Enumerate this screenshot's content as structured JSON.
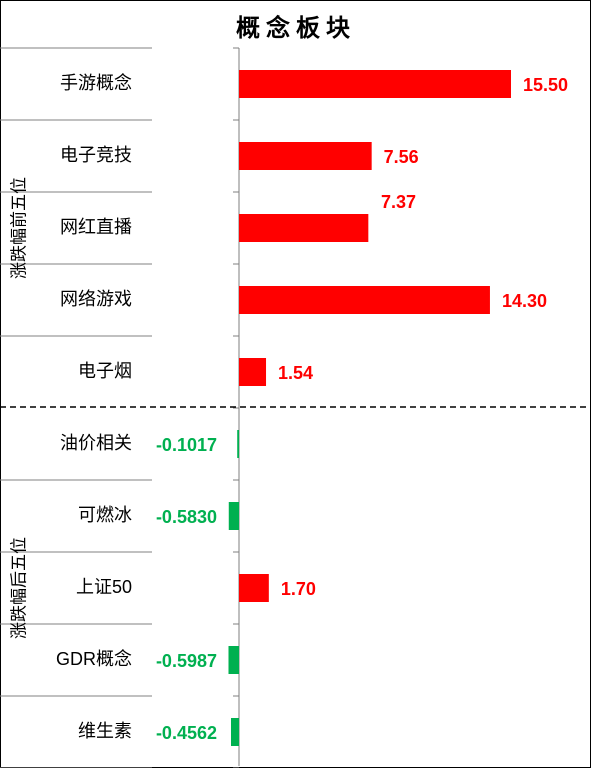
{
  "chart_data": {
    "type": "bar",
    "orientation": "horizontal",
    "title": "概念板块",
    "groups": [
      {
        "label": "涨跌幅前五位",
        "categories": [
          "手游概念",
          "电子竞技",
          "网红直播",
          "网络游戏",
          "电子烟"
        ],
        "values": [
          15.5,
          7.56,
          7.37,
          14.3,
          1.54
        ],
        "value_labels": [
          "15.50",
          "7.56",
          "7.37",
          "14.30",
          "1.54"
        ]
      },
      {
        "label": "涨跌幅后五位",
        "categories": [
          "油价相关",
          "可燃冰",
          "上证50",
          "GDR概念",
          "维生素"
        ],
        "values": [
          -0.1017,
          -0.583,
          1.7,
          -0.5987,
          -0.4562
        ],
        "value_labels": [
          "-0.1017",
          "-0.5830",
          "1.70",
          "-0.5987",
          "-0.4562"
        ]
      }
    ],
    "xlim": [
      -0.8,
      16.5
    ],
    "colors": {
      "positive": "#ff0000",
      "negative": "#00b050"
    },
    "grid": false,
    "legend": "none"
  }
}
